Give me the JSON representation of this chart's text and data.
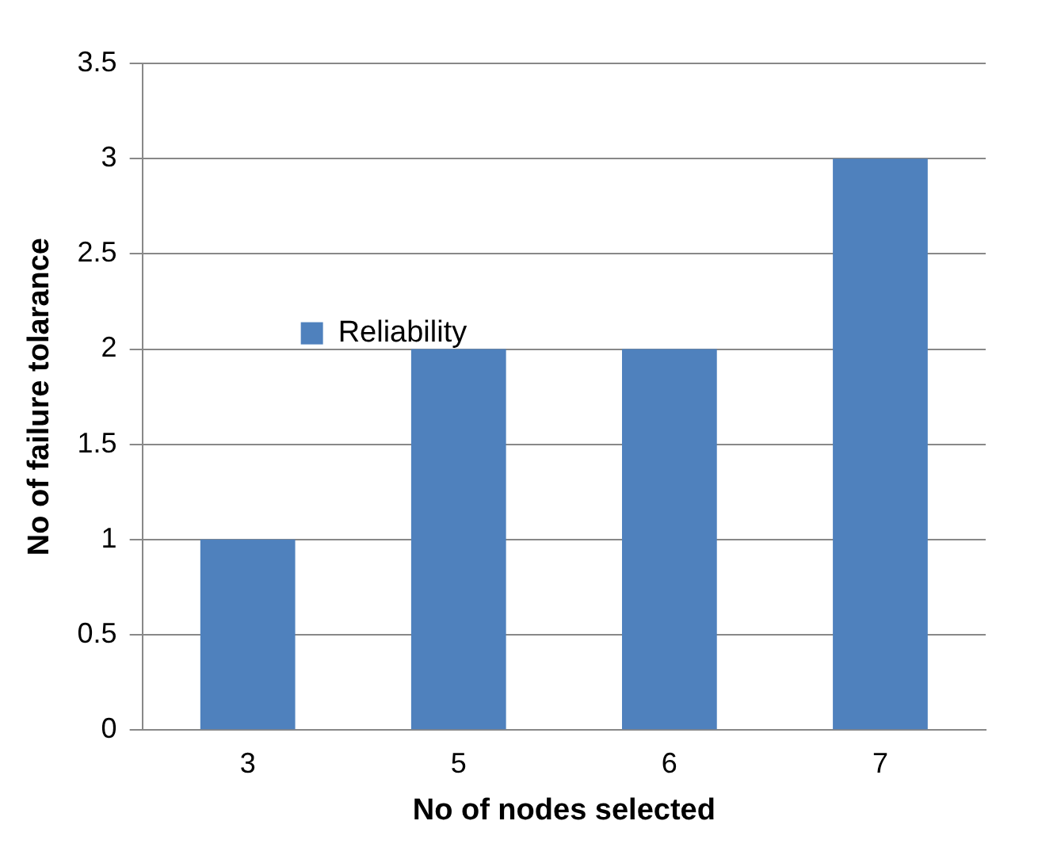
{
  "chart_data": {
    "type": "bar",
    "categories": [
      "3",
      "5",
      "6",
      "7"
    ],
    "series": [
      {
        "name": "Reliability",
        "color": "#4f81bd",
        "values": [
          1,
          2,
          2,
          3
        ]
      }
    ],
    "xlabel": "No of nodes selected",
    "ylabel": "No of failure tolarance",
    "ylim": [
      0,
      3.5
    ],
    "yticks": [
      0,
      0.5,
      1,
      1.5,
      2,
      2.5,
      3,
      3.5
    ],
    "grid": "y",
    "legend": "top"
  }
}
